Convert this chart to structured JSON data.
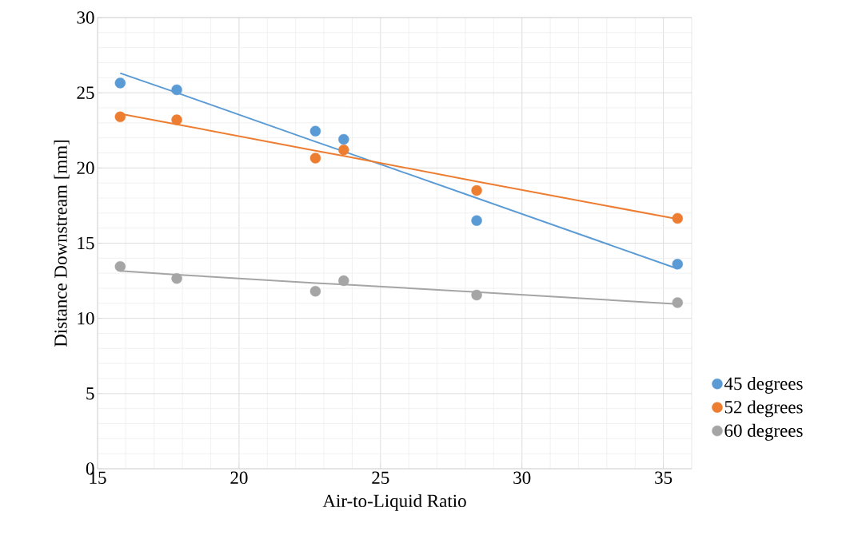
{
  "chart_data": {
    "type": "scatter",
    "xlabel": "Air-to-Liquid Ratio",
    "ylabel": "Distance Downstream [mm]",
    "x": [
      15.8,
      17.8,
      22.7,
      23.7,
      28.4,
      35.5
    ],
    "series": [
      {
        "name": "45 degrees",
        "color": "#5b9bd5",
        "values": [
          25.65,
          25.2,
          22.45,
          21.9,
          16.5,
          13.6
        ]
      },
      {
        "name": "52 degrees",
        "color": "#ed7d31",
        "values": [
          23.4,
          23.2,
          20.65,
          21.2,
          18.5,
          16.65
        ]
      },
      {
        "name": "60 degrees",
        "color": "#a5a5a5",
        "values": [
          13.45,
          12.65,
          11.8,
          12.5,
          11.55,
          11.05
        ]
      },
      {
        "type": "line",
        "marker": "none",
        "color": "#5b9bd5",
        "values": [
          26.3,
          25.0,
          21.75,
          21.1,
          18.0,
          13.3
        ]
      },
      {
        "type": "line",
        "marker": "none",
        "color": "#ed7d31",
        "values": [
          23.6,
          22.9,
          21.15,
          20.8,
          19.1,
          16.6
        ]
      },
      {
        "type": "line",
        "marker": "none",
        "color": "#a5a5a5",
        "values": [
          13.15,
          12.9,
          12.35,
          12.25,
          11.75,
          10.95
        ]
      }
    ],
    "xlim": [
      15,
      36
    ],
    "xticks": [
      15,
      20,
      25,
      30,
      35
    ],
    "ylim": [
      0,
      30
    ],
    "yticks": [
      0,
      5,
      10,
      15,
      20,
      25,
      30
    ],
    "grid": true,
    "legend": "right",
    "marker": "circle"
  }
}
